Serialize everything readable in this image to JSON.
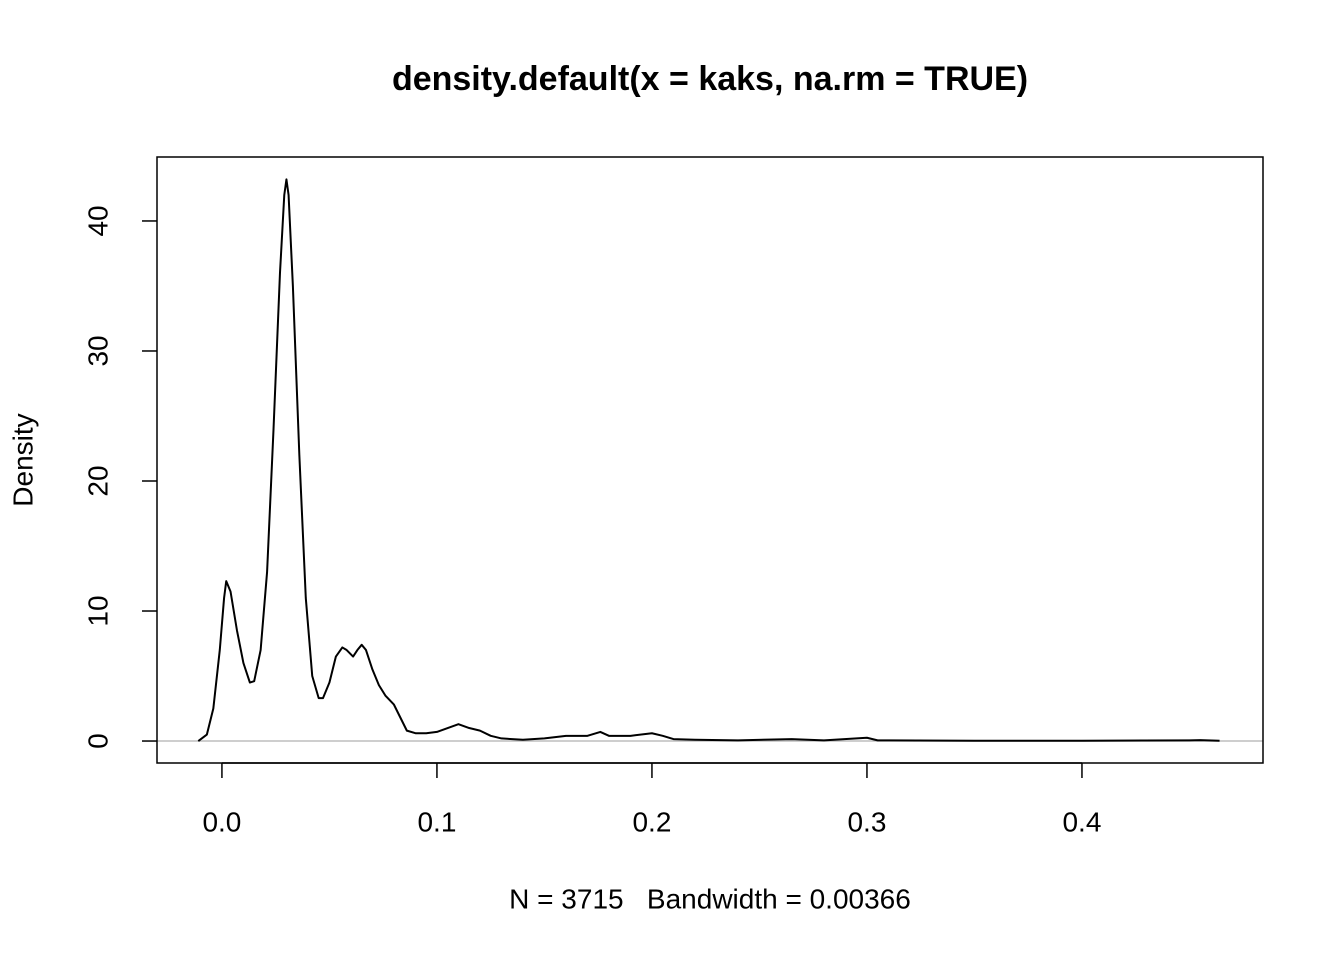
{
  "chart_data": {
    "type": "line",
    "title": "density.default(x = kaks, na.rm = TRUE)",
    "xlabel": "N = 3715   Bandwidth = 0.00366",
    "ylabel": "Density",
    "x": [
      -0.011,
      -0.007,
      -0.004,
      -0.001,
      0.001,
      0.002,
      0.004,
      0.007,
      0.01,
      0.013,
      0.015,
      0.018,
      0.021,
      0.024,
      0.027,
      0.029,
      0.03,
      0.031,
      0.033,
      0.036,
      0.039,
      0.042,
      0.045,
      0.047,
      0.05,
      0.053,
      0.056,
      0.058,
      0.061,
      0.063,
      0.065,
      0.067,
      0.07,
      0.073,
      0.076,
      0.08,
      0.083,
      0.086,
      0.09,
      0.095,
      0.1,
      0.105,
      0.11,
      0.115,
      0.12,
      0.125,
      0.13,
      0.14,
      0.15,
      0.16,
      0.17,
      0.176,
      0.18,
      0.19,
      0.2,
      0.205,
      0.21,
      0.22,
      0.24,
      0.265,
      0.28,
      0.3,
      0.305,
      0.35,
      0.4,
      0.45,
      0.455,
      0.464
    ],
    "series": [
      {
        "name": "Density",
        "color": "#000000",
        "values": [
          0,
          0.5,
          2.5,
          7,
          11,
          12.3,
          11.5,
          8.5,
          6,
          4.5,
          4.6,
          7,
          13,
          24,
          36,
          42,
          43.2,
          42,
          35,
          22,
          11,
          5,
          3.3,
          3.3,
          4.5,
          6.5,
          7.2,
          7,
          6.5,
          7,
          7.4,
          7,
          5.5,
          4.3,
          3.5,
          2.8,
          1.8,
          0.8,
          0.6,
          0.6,
          0.7,
          1.0,
          1.3,
          1.0,
          0.8,
          0.4,
          0.2,
          0.1,
          0.2,
          0.4,
          0.4,
          0.7,
          0.4,
          0.4,
          0.6,
          0.4,
          0.15,
          0.1,
          0.05,
          0.15,
          0.05,
          0.25,
          0.05,
          0.02,
          0.02,
          0.05,
          0.07,
          0.02
        ]
      }
    ],
    "xlim": [
      -0.0302,
      0.4842
    ],
    "ylim": [
      -1.69,
      44.92
    ],
    "xticks": [
      {
        "value": 0,
        "label": "0.0"
      },
      0.1,
      0.2,
      0.3,
      0.4
    ],
    "yticks": [
      0,
      10,
      20,
      30,
      40
    ],
    "zero_line": true,
    "zero_line_color": "#bebebe"
  }
}
